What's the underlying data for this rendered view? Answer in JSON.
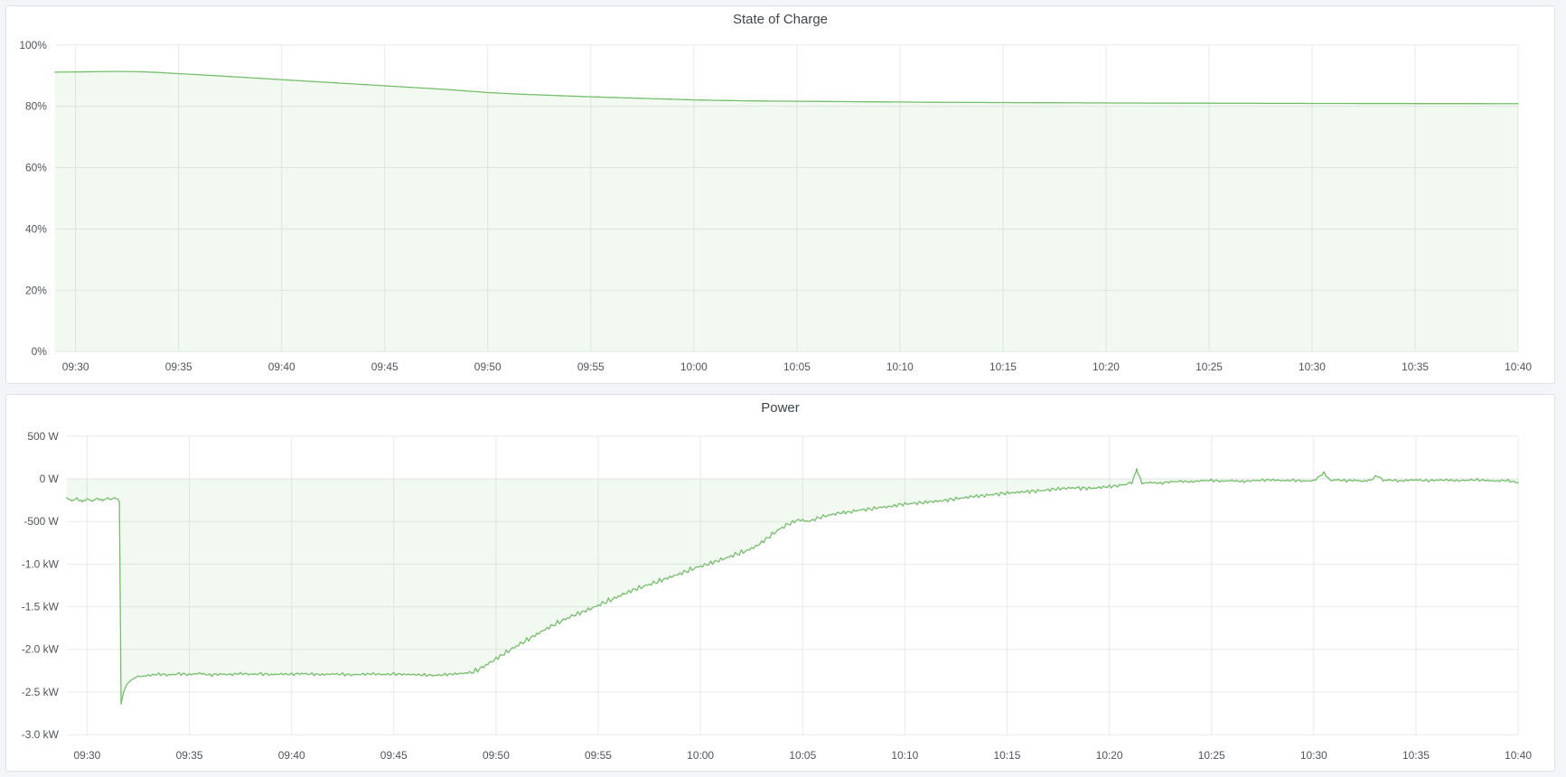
{
  "page": {
    "background_color": "#f3f5f9",
    "panel_background": "#ffffff",
    "panel_border_color": "#dde1e8",
    "title_color": "#3f454c",
    "tick_label_color": "#4e545b",
    "series_green": "#73bf69"
  },
  "panels": [
    {
      "title": "State of Charge"
    },
    {
      "title": "Power"
    }
  ],
  "chart_data": [
    {
      "type": "area",
      "title": "State of Charge",
      "xlabel": "time",
      "ylabel": "",
      "unit": "percent",
      "legend": "none",
      "grid": true,
      "grid_color": "#e7e9ec",
      "x_domain_minutes": [
        -1,
        70
      ],
      "x_start_label": "09:30",
      "x_ticks": [
        "09:30",
        "09:35",
        "09:40",
        "09:45",
        "09:50",
        "09:55",
        "10:00",
        "10:05",
        "10:10",
        "10:15",
        "10:20",
        "10:25",
        "10:30",
        "10:35",
        "10:40"
      ],
      "x_tick_minutes": [
        0,
        5,
        10,
        15,
        20,
        25,
        30,
        35,
        40,
        45,
        50,
        55,
        60,
        65,
        70
      ],
      "y_range": [
        0,
        100
      ],
      "y_ticks": [
        {
          "label": "100%",
          "value": 100
        },
        {
          "label": "80%",
          "value": 80
        },
        {
          "label": "60%",
          "value": 60
        },
        {
          "label": "40%",
          "value": 40
        },
        {
          "label": "20%",
          "value": 20
        },
        {
          "label": "0%",
          "value": 0
        }
      ],
      "baseline_value": 0,
      "series": [
        {
          "name": "State of Charge",
          "color": "#73bf69",
          "fill_opacity": 0.09,
          "line_width": 1.3,
          "points": [
            [
              -1,
              91.15
            ],
            [
              0,
              91.2
            ],
            [
              1,
              91.3
            ],
            [
              2,
              91.35
            ],
            [
              3,
              91.3
            ],
            [
              4,
              91.05
            ],
            [
              5,
              90.65
            ],
            [
              6,
              90.3
            ],
            [
              7,
              89.9
            ],
            [
              8,
              89.5
            ],
            [
              9,
              89.1
            ],
            [
              10,
              88.7
            ],
            [
              11,
              88.3
            ],
            [
              12,
              87.9
            ],
            [
              13,
              87.5
            ],
            [
              14,
              87.1
            ],
            [
              15,
              86.7
            ],
            [
              16,
              86.3
            ],
            [
              17,
              85.9
            ],
            [
              18,
              85.5
            ],
            [
              19,
              85.0
            ],
            [
              20,
              84.5
            ],
            [
              21,
              84.15
            ],
            [
              22,
              83.85
            ],
            [
              23,
              83.6
            ],
            [
              24,
              83.35
            ],
            [
              25,
              83.1
            ],
            [
              26,
              82.9
            ],
            [
              27,
              82.7
            ],
            [
              28,
              82.5
            ],
            [
              29,
              82.3
            ],
            [
              30,
              82.1
            ],
            [
              31,
              81.95
            ],
            [
              32,
              81.85
            ],
            [
              33,
              81.75
            ],
            [
              34,
              81.7
            ],
            [
              35,
              81.65
            ],
            [
              36,
              81.6
            ],
            [
              38,
              81.5
            ],
            [
              40,
              81.4
            ],
            [
              42,
              81.3
            ],
            [
              44,
              81.25
            ],
            [
              46,
              81.2
            ],
            [
              48,
              81.15
            ],
            [
              50,
              81.1
            ],
            [
              53,
              81.05
            ],
            [
              56,
              81.0
            ],
            [
              60,
              80.95
            ],
            [
              64,
              80.9
            ],
            [
              67,
              80.88
            ],
            [
              70,
              80.85
            ]
          ]
        }
      ]
    },
    {
      "type": "area",
      "title": "Power",
      "xlabel": "time",
      "ylabel": "",
      "unit": "watt",
      "legend": "none",
      "grid": true,
      "grid_color": "#e7e9ec",
      "x_domain_minutes": [
        -1,
        70
      ],
      "x_start_label": "09:30",
      "x_ticks": [
        "09:30",
        "09:35",
        "09:40",
        "09:45",
        "09:50",
        "09:55",
        "10:00",
        "10:05",
        "10:10",
        "10:15",
        "10:20",
        "10:25",
        "10:30",
        "10:35",
        "10:40"
      ],
      "x_tick_minutes": [
        0,
        5,
        10,
        15,
        20,
        25,
        30,
        35,
        40,
        45,
        50,
        55,
        60,
        65,
        70
      ],
      "y_range": [
        -3000,
        500
      ],
      "y_ticks": [
        {
          "label": "500 W",
          "value": 500
        },
        {
          "label": "0 W",
          "value": 0
        },
        {
          "label": "-500 W",
          "value": -500
        },
        {
          "label": "-1.0 kW",
          "value": -1000
        },
        {
          "label": "-1.5 kW",
          "value": -1500
        },
        {
          "label": "-2.0 kW",
          "value": -2000
        },
        {
          "label": "-2.5 kW",
          "value": -2500
        },
        {
          "label": "-3.0 kW",
          "value": -3000
        }
      ],
      "baseline_value": 0,
      "noise_bands": [
        [
          -1,
          1.58,
          14
        ],
        [
          1.58,
          2.42,
          0
        ],
        [
          2.42,
          18.9,
          20
        ],
        [
          18.9,
          34.5,
          34
        ],
        [
          34.5,
          51.1,
          26
        ],
        [
          51.1,
          70.01,
          17
        ]
      ],
      "series": [
        {
          "name": "Power",
          "color": "#73bf69",
          "fill_opacity": 0.09,
          "line_width": 1.3,
          "points": [
            [
              -1,
              -225
            ],
            [
              -0.75,
              -255
            ],
            [
              -0.5,
              -232
            ],
            [
              -0.25,
              -262
            ],
            [
              0,
              -238
            ],
            [
              0.25,
              -258
            ],
            [
              0.5,
              -232
            ],
            [
              0.75,
              -250
            ],
            [
              1,
              -228
            ],
            [
              1.2,
              -242
            ],
            [
              1.35,
              -222
            ],
            [
              1.5,
              -240
            ],
            [
              1.58,
              -270
            ],
            [
              1.66,
              -2640
            ],
            [
              1.78,
              -2500
            ],
            [
              1.95,
              -2405
            ],
            [
              2.15,
              -2360
            ],
            [
              2.4,
              -2325
            ],
            [
              3,
              -2305
            ],
            [
              3.5,
              -2290
            ],
            [
              4,
              -2300
            ],
            [
              4.5,
              -2285
            ],
            [
              5,
              -2295
            ],
            [
              5.5,
              -2280
            ],
            [
              6,
              -2300
            ],
            [
              6.5,
              -2290
            ],
            [
              7,
              -2295
            ],
            [
              7.5,
              -2282
            ],
            [
              8,
              -2292
            ],
            [
              8.5,
              -2286
            ],
            [
              9,
              -2296
            ],
            [
              9.5,
              -2288
            ],
            [
              10,
              -2292
            ],
            [
              10.5,
              -2284
            ],
            [
              11,
              -2290
            ],
            [
              11.5,
              -2296
            ],
            [
              12,
              -2288
            ],
            [
              12.5,
              -2292
            ],
            [
              13,
              -2298
            ],
            [
              13.5,
              -2290
            ],
            [
              14,
              -2286
            ],
            [
              14.5,
              -2294
            ],
            [
              15,
              -2288
            ],
            [
              15.5,
              -2292
            ],
            [
              16,
              -2296
            ],
            [
              16.5,
              -2300
            ],
            [
              17,
              -2305
            ],
            [
              17.5,
              -2295
            ],
            [
              18,
              -2288
            ],
            [
              18.5,
              -2278
            ],
            [
              18.9,
              -2265
            ],
            [
              19.3,
              -2215
            ],
            [
              19.8,
              -2140
            ],
            [
              20.3,
              -2065
            ],
            [
              20.8,
              -1990
            ],
            [
              21.3,
              -1920
            ],
            [
              21.8,
              -1850
            ],
            [
              22.3,
              -1780
            ],
            [
              22.8,
              -1715
            ],
            [
              23.3,
              -1655
            ],
            [
              23.8,
              -1600
            ],
            [
              24.3,
              -1555
            ],
            [
              24.8,
              -1505
            ],
            [
              25.3,
              -1450
            ],
            [
              25.8,
              -1400
            ],
            [
              26.3,
              -1345
            ],
            [
              26.8,
              -1295
            ],
            [
              27.3,
              -1255
            ],
            [
              27.8,
              -1215
            ],
            [
              28.3,
              -1170
            ],
            [
              28.8,
              -1130
            ],
            [
              29.3,
              -1085
            ],
            [
              29.8,
              -1040
            ],
            [
              30.3,
              -1005
            ],
            [
              30.8,
              -965
            ],
            [
              31.3,
              -925
            ],
            [
              31.8,
              -880
            ],
            [
              32.3,
              -840
            ],
            [
              32.8,
              -780
            ],
            [
              33.3,
              -690
            ],
            [
              33.8,
              -600
            ],
            [
              34.3,
              -530
            ],
            [
              34.8,
              -480
            ],
            [
              35.3,
              -500
            ],
            [
              35.8,
              -455
            ],
            [
              36.3,
              -425
            ],
            [
              36.8,
              -400
            ],
            [
              37.3,
              -390
            ],
            [
              37.8,
              -365
            ],
            [
              38.3,
              -355
            ],
            [
              38.8,
              -335
            ],
            [
              39.3,
              -325
            ],
            [
              39.8,
              -300
            ],
            [
              40.3,
              -290
            ],
            [
              40.8,
              -280
            ],
            [
              41.3,
              -268
            ],
            [
              41.8,
              -258
            ],
            [
              42.3,
              -240
            ],
            [
              42.8,
              -225
            ],
            [
              43.3,
              -208
            ],
            [
              43.8,
              -198
            ],
            [
              44.3,
              -185
            ],
            [
              44.8,
              -172
            ],
            [
              45.3,
              -162
            ],
            [
              45.8,
              -152
            ],
            [
              46.3,
              -145
            ],
            [
              46.8,
              -135
            ],
            [
              47.3,
              -122
            ],
            [
              47.8,
              -112
            ],
            [
              48.3,
              -105
            ],
            [
              48.8,
              -112
            ],
            [
              49.3,
              -108
            ],
            [
              49.8,
              -95
            ],
            [
              50.3,
              -85
            ],
            [
              50.8,
              -65
            ],
            [
              51.1,
              -45
            ],
            [
              51.35,
              105
            ],
            [
              51.6,
              -55
            ],
            [
              52,
              -42
            ],
            [
              52.5,
              -52
            ],
            [
              53,
              -35
            ],
            [
              53.5,
              -28
            ],
            [
              54,
              -35
            ],
            [
              54.5,
              -22
            ],
            [
              55,
              -18
            ],
            [
              55.5,
              -28
            ],
            [
              56,
              -20
            ],
            [
              56.5,
              -32
            ],
            [
              57,
              -22
            ],
            [
              57.5,
              -15
            ],
            [
              58,
              -12
            ],
            [
              58.5,
              -22
            ],
            [
              59,
              -16
            ],
            [
              59.5,
              -26
            ],
            [
              60,
              -22
            ],
            [
              60.5,
              70
            ],
            [
              60.8,
              -18
            ],
            [
              61.2,
              -12
            ],
            [
              61.6,
              -24
            ],
            [
              62,
              -16
            ],
            [
              62.4,
              -28
            ],
            [
              62.8,
              -14
            ],
            [
              63.1,
              40
            ],
            [
              63.4,
              -18
            ],
            [
              63.8,
              -14
            ],
            [
              64.2,
              -26
            ],
            [
              64.6,
              -16
            ],
            [
              65,
              -12
            ],
            [
              65.5,
              -22
            ],
            [
              66,
              -16
            ],
            [
              66.5,
              -12
            ],
            [
              67,
              -22
            ],
            [
              67.5,
              -16
            ],
            [
              68,
              -12
            ],
            [
              68.5,
              -20
            ],
            [
              69,
              -26
            ],
            [
              69.4,
              -16
            ],
            [
              69.7,
              -30
            ],
            [
              70,
              -48
            ]
          ]
        }
      ]
    }
  ]
}
